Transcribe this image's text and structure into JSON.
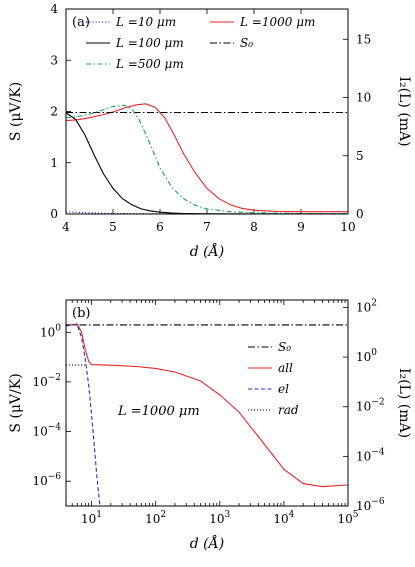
{
  "chart_data": [
    {
      "type": "line",
      "panel_label": "(a)",
      "xlabel": "d (Å)",
      "ylabel": "S (μV/K)",
      "y2label": "I₂(L) (mA)",
      "xlim": [
        4,
        10
      ],
      "ylim": [
        0,
        4
      ],
      "y2lim": [
        0,
        17.6
      ],
      "x_ticks": [
        4,
        5,
        6,
        7,
        8,
        9,
        10
      ],
      "y_ticks": [
        0,
        1,
        2,
        3,
        4
      ],
      "y2_ticks": [
        0,
        5,
        10,
        15
      ],
      "grid": false,
      "legend_columns": 2,
      "series": [
        {
          "name": "L =10 μm",
          "color": "#2b2bcc",
          "dash": "1.2,2",
          "x": [
            4,
            4.2,
            4.4,
            4.6,
            4.8,
            5,
            5.5,
            6,
            7,
            8,
            9,
            10
          ],
          "y": [
            0.04,
            0.035,
            0.028,
            0.02,
            0.015,
            0.01,
            0.005,
            0.003,
            0.002,
            0.002,
            0.002,
            0.002
          ]
        },
        {
          "name": "L =1000 μm",
          "color": "#e8262c",
          "dash": "",
          "x": [
            4,
            4.25,
            4.5,
            4.75,
            5,
            5.25,
            5.5,
            5.7,
            5.9,
            6.1,
            6.3,
            6.5,
            6.75,
            7,
            7.25,
            7.5,
            7.75,
            8,
            8.5,
            9,
            9.5,
            10
          ],
          "y": [
            1.82,
            1.84,
            1.88,
            1.93,
            1.99,
            2.07,
            2.13,
            2.15,
            2.08,
            1.88,
            1.55,
            1.18,
            0.8,
            0.5,
            0.3,
            0.18,
            0.11,
            0.075,
            0.05,
            0.045,
            0.045,
            0.045
          ]
        },
        {
          "name": "L =100 μm",
          "color": "#000000",
          "dash": "",
          "x": [
            4,
            4.2,
            4.4,
            4.6,
            4.8,
            5,
            5.2,
            5.4,
            5.6,
            5.8,
            6,
            6.25,
            6.5,
            7,
            8,
            9,
            10
          ],
          "y": [
            1.97,
            1.85,
            1.55,
            1.15,
            0.78,
            0.5,
            0.3,
            0.18,
            0.1,
            0.06,
            0.035,
            0.018,
            0.01,
            0.004,
            0.002,
            0.002,
            0.002
          ]
        },
        {
          "name": "S₀",
          "color": "#000000",
          "dash": "7,2.5,1.5,2.5",
          "x": [
            4,
            10
          ],
          "y": [
            1.98,
            1.98
          ]
        },
        {
          "name": "L =500 μm",
          "color": "#19a05a",
          "dash": "5,2.5,1.5,2.5",
          "x": [
            4,
            4.25,
            4.5,
            4.75,
            5,
            5.25,
            5.4,
            5.55,
            5.75,
            6,
            6.25,
            6.5,
            6.75,
            7,
            7.5,
            8,
            8.5,
            9,
            10
          ],
          "y": [
            1.88,
            1.9,
            1.95,
            2.02,
            2.1,
            2.12,
            2.05,
            1.85,
            1.45,
            0.9,
            0.52,
            0.3,
            0.17,
            0.1,
            0.045,
            0.025,
            0.015,
            0.01,
            0.006
          ]
        }
      ]
    },
    {
      "type": "line",
      "panel_label": "(b)",
      "annotation": "L =1000 μm",
      "xlabel": "d (Å)",
      "ylabel": "S (μV/K)",
      "y2label": "I₂(L) (mA)",
      "xscale": "log",
      "yscale": "log",
      "xlim": [
        4,
        100000
      ],
      "ylim": [
        1e-07,
        20
      ],
      "y2lim": [
        1e-06,
        200
      ],
      "x_ticks": [
        10,
        100,
        1000,
        10000,
        100000
      ],
      "x_tick_labels": [
        "10",
        "10",
        "10",
        "10",
        "10"
      ],
      "x_tick_exps": [
        "1",
        "2",
        "3",
        "4",
        "5"
      ],
      "y_ticks": [
        1e-06,
        0.0001,
        0.01,
        1
      ],
      "y_tick_labels": [
        "10",
        "10",
        "10",
        "10"
      ],
      "y_tick_exps": [
        "−6",
        "−4",
        "−2",
        "0"
      ],
      "y2_ticks": [
        1e-06,
        0.0001,
        0.01,
        1,
        100
      ],
      "y2_tick_labels": [
        "10",
        "10",
        "10",
        "10",
        "10"
      ],
      "y2_tick_exps": [
        "−6",
        "−4",
        "−2",
        "0",
        "2"
      ],
      "grid": false,
      "legend_position": "right",
      "series": [
        {
          "name": "S₀",
          "color": "#000000",
          "dash": "7,2.5,1.5,2.5",
          "x": [
            4,
            100000
          ],
          "y": [
            1.98,
            1.98
          ]
        },
        {
          "name": "all",
          "color": "#e8262c",
          "dash": "",
          "x": [
            4,
            5,
            6,
            7,
            8,
            9,
            10,
            20,
            50,
            100,
            200,
            500,
            1000,
            2000,
            5000,
            10000,
            20000,
            40000,
            60000,
            100000
          ],
          "y": [
            1.8,
            2.0,
            2.15,
            1.0,
            0.2,
            0.07,
            0.05,
            0.047,
            0.042,
            0.035,
            0.025,
            0.011,
            0.003,
            0.0006,
            3e-05,
            3e-06,
            8e-07,
            6e-07,
            6.5e-07,
            7e-07
          ]
        },
        {
          "name": "el",
          "color": "#2b2bcc",
          "dash": "4,2.5",
          "x": [
            4,
            5,
            6,
            7,
            8,
            9,
            10,
            11,
            12,
            13.5
          ],
          "y": [
            1.8,
            2.0,
            2.0,
            0.6,
            0.08,
            0.008,
            0.0005,
            3e-05,
            2e-06,
            1e-07
          ]
        },
        {
          "name": "rad",
          "color": "#000000",
          "dash": "1.2,1.8",
          "x": [
            4,
            5,
            6,
            7,
            8,
            8.5
          ],
          "y": [
            0.048,
            0.048,
            0.048,
            0.048,
            0.048,
            0.048
          ]
        }
      ]
    }
  ]
}
